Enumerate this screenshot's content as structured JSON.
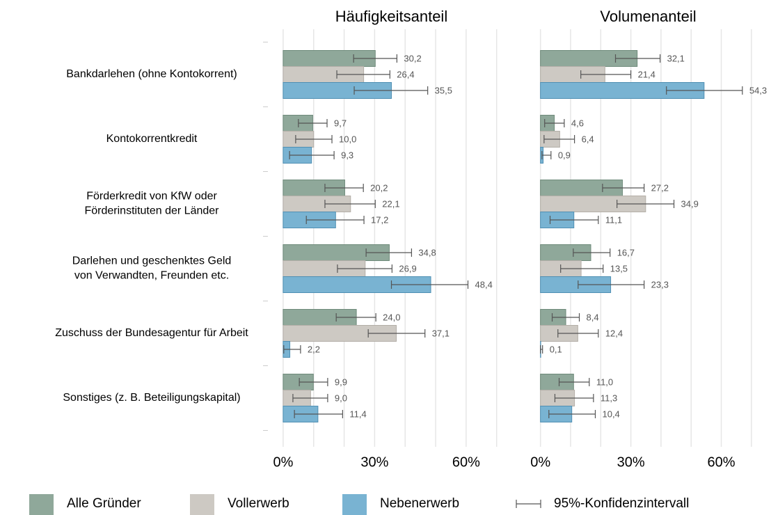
{
  "chart_data": [
    {
      "type": "hbar",
      "title": "Häufigkeitsanteil",
      "categories": [
        "Bankdarlehen (ohne Kontokorrent)",
        "Kontokorrentkredit",
        "Förderkredit von KfW oder\nFörderinstituten der Länder",
        "Darlehen und geschenktes Geld\nvon Verwandten, Freunden etc.",
        "Zuschuss der Bundesagentur für Arbeit",
        "Sonstiges (z. B. Beteiligungskapital)"
      ],
      "ci_label": "95%-Konfidenzintervall",
      "series": [
        {
          "name": "Alle Gründer",
          "color": "#8fa89a",
          "values": [
            30.2,
            9.7,
            20.2,
            34.8,
            24.0,
            9.9
          ],
          "value_labels": [
            "30,2",
            "9,7",
            "20,2",
            "34,8",
            "24,0",
            "9,9"
          ],
          "ci_low": [
            23.1,
            5.0,
            13.7,
            27.2,
            17.4,
            5.3
          ],
          "ci_high": [
            37.3,
            14.4,
            26.3,
            42.1,
            30.4,
            14.6
          ]
        },
        {
          "name": "Vollerwerb",
          "color": "#cdc9c3",
          "values": [
            26.4,
            10.0,
            22.1,
            26.9,
            37.1,
            9.0
          ],
          "value_labels": [
            "26,4",
            "10,0",
            "22,1",
            "26,9",
            "37,1",
            "9,0"
          ],
          "ci_low": [
            17.6,
            4.1,
            13.7,
            17.8,
            27.9,
            3.2
          ],
          "ci_high": [
            35.0,
            16.0,
            30.2,
            35.7,
            46.5,
            14.6
          ]
        },
        {
          "name": "Nebenerwerb",
          "color": "#79b3d2",
          "values": [
            35.5,
            9.3,
            17.2,
            48.4,
            2.2,
            11.4
          ],
          "value_labels": [
            "35,5",
            "9,3",
            "17,2",
            "48,4",
            "2,2",
            "11,4"
          ],
          "ci_low": [
            23.3,
            2.1,
            7.6,
            35.5,
            0.2,
            3.7
          ],
          "ci_high": [
            47.4,
            16.7,
            26.5,
            60.6,
            5.7,
            19.5
          ]
        }
      ],
      "xlim": [
        -5,
        76
      ],
      "xticks": [
        {
          "value": 0,
          "label": "0%"
        },
        {
          "value": 30,
          "label": "30%"
        },
        {
          "value": 60,
          "label": "60%"
        }
      ],
      "minor_xticks": [
        10,
        20,
        40,
        50,
        70
      ],
      "grid": true
    },
    {
      "type": "hbar",
      "title": "Volumenanteil",
      "series": [
        {
          "color": "#8fa89a",
          "values": [
            32.1,
            4.6,
            27.2,
            16.7,
            8.4,
            11.0
          ],
          "value_labels": [
            "32,1",
            "4,6",
            "27,2",
            "16,7",
            "8,4",
            "11,0"
          ],
          "ci_low": [
            24.9,
            1.4,
            20.6,
            10.9,
            3.9,
            6.2
          ],
          "ci_high": [
            39.7,
            7.9,
            34.4,
            23.1,
            12.9,
            16.2
          ]
        },
        {
          "color": "#cdc9c3",
          "values": [
            21.4,
            6.4,
            34.9,
            13.5,
            12.4,
            11.3
          ],
          "value_labels": [
            "21,4",
            "6,4",
            "34,9",
            "13,5",
            "12,4",
            "11,3"
          ],
          "ci_low": [
            13.4,
            1.2,
            25.4,
            6.7,
            5.8,
            4.8
          ],
          "ci_high": [
            30.0,
            11.3,
            44.3,
            20.8,
            19.2,
            17.6
          ]
        },
        {
          "color": "#79b3d2",
          "values": [
            54.3,
            0.9,
            11.1,
            23.3,
            0.1,
            10.4
          ],
          "value_labels": [
            "54,3",
            "0,9",
            "11,1",
            "23,3",
            "0,1",
            "10,4"
          ],
          "ci_low": [
            41.8,
            0.5,
            3.2,
            12.5,
            0.0,
            2.8
          ],
          "ci_high": [
            67.0,
            3.5,
            19.2,
            34.4,
            0.7,
            18.2
          ]
        }
      ],
      "xlim": [
        -5,
        76.5
      ],
      "xticks": [
        {
          "value": 0,
          "label": "0%"
        },
        {
          "value": 30,
          "label": "30%"
        },
        {
          "value": 60,
          "label": "60%"
        }
      ],
      "minor_xticks": [
        10,
        20,
        40,
        50,
        70
      ],
      "grid": true
    }
  ]
}
